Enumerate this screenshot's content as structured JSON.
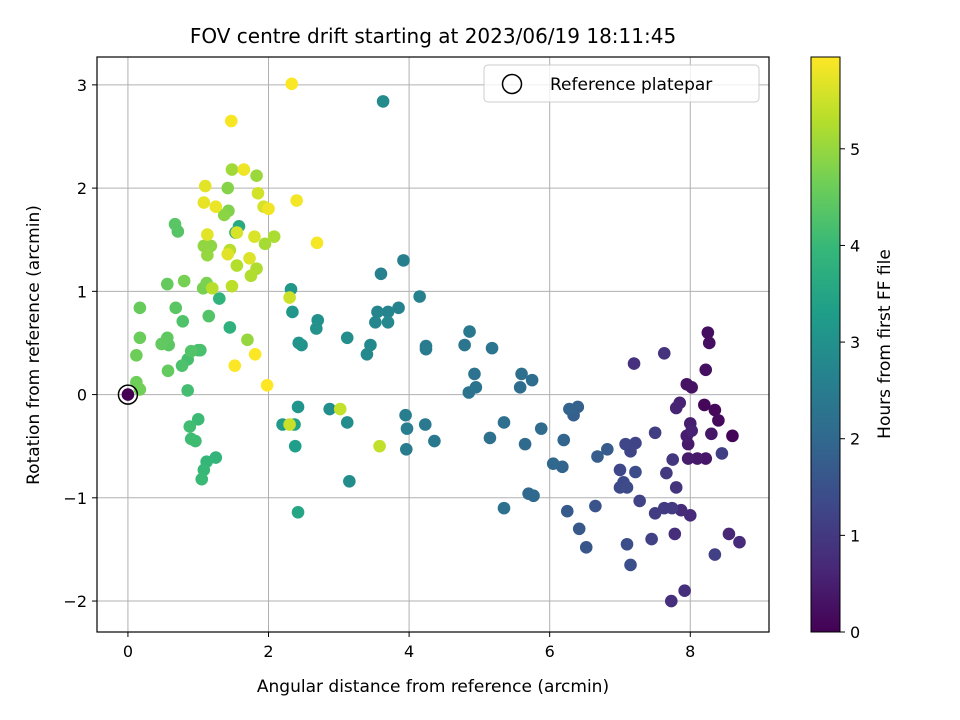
{
  "chart_data": {
    "type": "scatter",
    "title": "FOV centre drift starting at 2023/06/19 18:11:45",
    "xlabel": "Angular distance from reference (arcmin)",
    "ylabel": "Rotation from reference (arcmin)",
    "xlim": [
      -0.44,
      9.12
    ],
    "ylim": [
      -2.3,
      3.27
    ],
    "xticks": [
      0,
      2,
      4,
      6,
      8
    ],
    "yticks": [
      -2,
      -1,
      0,
      1,
      2,
      3
    ],
    "xtick_labels": [
      "0",
      "2",
      "4",
      "6",
      "8"
    ],
    "ytick_labels": [
      "−2",
      "−1",
      "0",
      "1",
      "2",
      "3"
    ],
    "grid": true,
    "legend": {
      "placement": "top-right",
      "entries": [
        "Reference platepar"
      ]
    },
    "reference_point": {
      "x": 0,
      "y": 0,
      "label": "Reference platepar"
    },
    "colorbar": {
      "label": "Hours from first FF file",
      "range": [
        0,
        5.95
      ],
      "ticks": [
        0,
        1,
        2,
        3,
        4,
        5
      ],
      "tick_labels": [
        "0",
        "1",
        "2",
        "3",
        "4",
        "5"
      ],
      "colormap": "viridis",
      "stops": [
        "#440154",
        "#482878",
        "#3e4989",
        "#31688e",
        "#26828e",
        "#1f9e89",
        "#35b779",
        "#6ece58",
        "#b5de2b",
        "#fde725"
      ]
    },
    "points": [
      [
        0.0,
        0.0,
        0.0
      ],
      [
        8.6,
        -0.4,
        0.05
      ],
      [
        8.2,
        -0.1,
        0.1
      ],
      [
        8.35,
        -0.15,
        0.12
      ],
      [
        8.4,
        -0.25,
        0.15
      ],
      [
        8.25,
        0.6,
        0.2
      ],
      [
        8.27,
        0.5,
        0.22
      ],
      [
        8.22,
        0.24,
        0.25
      ],
      [
        8.02,
        0.07,
        0.28
      ],
      [
        7.95,
        0.1,
        0.3
      ],
      [
        8.3,
        -0.38,
        0.35
      ],
      [
        8.22,
        -0.62,
        0.38
      ],
      [
        8.1,
        -0.62,
        0.4
      ],
      [
        7.97,
        -0.48,
        0.42
      ],
      [
        7.97,
        -0.62,
        0.45
      ],
      [
        8.0,
        -0.28,
        0.48
      ],
      [
        7.95,
        -0.4,
        0.5
      ],
      [
        8.02,
        -0.35,
        0.55
      ],
      [
        7.85,
        -0.08,
        0.58
      ],
      [
        7.8,
        -0.13,
        0.6
      ],
      [
        8.55,
        -1.35,
        0.65
      ],
      [
        8.7,
        -1.43,
        0.7
      ],
      [
        8.0,
        -1.17,
        0.72
      ],
      [
        7.87,
        -1.12,
        0.75
      ],
      [
        7.78,
        -1.35,
        0.78
      ],
      [
        7.73,
        -2.0,
        0.8
      ],
      [
        7.92,
        -1.9,
        0.82
      ],
      [
        7.2,
        0.3,
        0.85
      ],
      [
        7.63,
        0.4,
        0.88
      ],
      [
        7.8,
        -0.9,
        0.9
      ],
      [
        7.75,
        -0.63,
        0.95
      ],
      [
        7.66,
        -0.76,
        1.0
      ],
      [
        7.74,
        -1.1,
        1.02
      ],
      [
        7.63,
        -1.1,
        1.05
      ],
      [
        7.5,
        -1.15,
        1.08
      ],
      [
        7.5,
        -0.37,
        1.1
      ],
      [
        8.45,
        -0.57,
        1.12
      ],
      [
        8.35,
        -1.55,
        1.15
      ],
      [
        7.45,
        -1.4,
        1.18
      ],
      [
        7.28,
        -1.03,
        1.2
      ],
      [
        7.22,
        -0.47,
        1.22
      ],
      [
        7.15,
        -0.55,
        1.25
      ],
      [
        7.08,
        -0.48,
        1.28
      ],
      [
        7.0,
        -0.73,
        1.3
      ],
      [
        7.0,
        -0.9,
        1.32
      ],
      [
        7.05,
        -0.85,
        1.35
      ],
      [
        7.1,
        -0.9,
        1.38
      ],
      [
        7.22,
        -0.75,
        1.4
      ],
      [
        7.1,
        -1.45,
        1.42
      ],
      [
        7.15,
        -1.65,
        1.45
      ],
      [
        6.65,
        -1.08,
        1.55
      ],
      [
        6.52,
        -1.48,
        1.6
      ],
      [
        6.42,
        -1.3,
        1.65
      ],
      [
        6.25,
        -1.13,
        1.68
      ],
      [
        6.82,
        -0.53,
        1.7
      ],
      [
        6.68,
        -0.6,
        1.75
      ],
      [
        6.34,
        -0.2,
        1.8
      ],
      [
        6.4,
        -0.12,
        1.85
      ],
      [
        6.28,
        -0.14,
        1.9
      ],
      [
        6.18,
        -0.7,
        1.92
      ],
      [
        6.2,
        -0.44,
        1.95
      ],
      [
        6.05,
        -0.67,
        1.98
      ],
      [
        5.7,
        -0.96,
        2.0
      ],
      [
        5.77,
        -0.98,
        2.02
      ],
      [
        5.65,
        -0.48,
        2.05
      ],
      [
        5.88,
        -0.33,
        2.08
      ],
      [
        5.75,
        0.14,
        2.1
      ],
      [
        5.58,
        0.07,
        2.12
      ],
      [
        5.6,
        0.2,
        2.15
      ],
      [
        5.35,
        -0.27,
        2.18
      ],
      [
        5.15,
        -0.42,
        2.2
      ],
      [
        5.35,
        -1.1,
        2.22
      ],
      [
        4.93,
        0.2,
        2.25
      ],
      [
        4.95,
        0.07,
        2.28
      ],
      [
        4.85,
        0.02,
        2.3
      ],
      [
        5.18,
        0.45,
        2.32
      ],
      [
        4.79,
        0.48,
        2.35
      ],
      [
        4.86,
        0.61,
        2.38
      ],
      [
        4.36,
        -0.45,
        2.4
      ],
      [
        4.23,
        -0.29,
        2.42
      ],
      [
        4.24,
        0.44,
        2.45
      ],
      [
        4.24,
        0.47,
        2.48
      ],
      [
        3.96,
        -0.53,
        2.5
      ],
      [
        3.97,
        -0.33,
        2.52
      ],
      [
        3.95,
        -0.2,
        2.55
      ],
      [
        3.92,
        1.3,
        2.58
      ],
      [
        3.6,
        1.17,
        2.6
      ],
      [
        4.15,
        0.95,
        2.62
      ],
      [
        3.85,
        0.84,
        2.65
      ],
      [
        3.7,
        0.8,
        2.7
      ],
      [
        3.55,
        0.8,
        2.72
      ],
      [
        3.52,
        0.7,
        2.75
      ],
      [
        3.7,
        0.7,
        2.78
      ],
      [
        3.45,
        0.48,
        2.8
      ],
      [
        3.4,
        0.39,
        2.82
      ],
      [
        3.63,
        2.84,
        2.85
      ],
      [
        3.12,
        -0.27,
        2.88
      ],
      [
        3.15,
        -0.84,
        2.9
      ],
      [
        3.12,
        0.55,
        2.92
      ],
      [
        2.87,
        -0.14,
        2.95
      ],
      [
        2.7,
        0.72,
        3.0
      ],
      [
        2.68,
        0.64,
        3.02
      ],
      [
        2.47,
        0.48,
        3.05
      ],
      [
        2.43,
        0.5,
        3.08
      ],
      [
        2.42,
        -0.12,
        3.1
      ],
      [
        2.34,
        0.8,
        3.12
      ],
      [
        2.32,
        1.02,
        3.15
      ],
      [
        2.2,
        -0.29,
        3.2
      ],
      [
        2.38,
        -0.5,
        3.3
      ],
      [
        2.37,
        -0.29,
        3.4
      ],
      [
        2.42,
        -1.14,
        3.5
      ],
      [
        1.58,
        1.63,
        3.6
      ],
      [
        1.53,
        1.57,
        3.7
      ],
      [
        1.45,
        0.65,
        3.8
      ],
      [
        1.3,
        0.93,
        3.85
      ],
      [
        1.25,
        -0.61,
        3.9
      ],
      [
        1.12,
        -0.65,
        3.95
      ],
      [
        1.08,
        -0.73,
        4.0
      ],
      [
        1.05,
        -0.82,
        4.02
      ],
      [
        1.0,
        -0.24,
        4.05
      ],
      [
        0.96,
        -0.45,
        4.08
      ],
      [
        0.9,
        -0.43,
        4.1
      ],
      [
        0.88,
        -0.31,
        4.12
      ],
      [
        0.85,
        0.04,
        4.15
      ],
      [
        0.85,
        0.34,
        4.18
      ],
      [
        1.03,
        0.43,
        4.2
      ],
      [
        1.0,
        0.43,
        4.22
      ],
      [
        0.77,
        0.28,
        4.25
      ],
      [
        0.78,
        0.71,
        4.28
      ],
      [
        0.9,
        0.42,
        4.3
      ],
      [
        1.15,
        0.76,
        4.32
      ],
      [
        0.71,
        1.58,
        4.35
      ],
      [
        0.67,
        1.65,
        4.38
      ],
      [
        0.68,
        0.84,
        4.4
      ],
      [
        0.58,
        0.48,
        4.42
      ],
      [
        0.56,
        0.55,
        4.45
      ],
      [
        0.48,
        0.49,
        4.48
      ],
      [
        0.57,
        0.23,
        4.5
      ],
      [
        0.56,
        1.07,
        4.52
      ],
      [
        0.17,
        0.84,
        4.55
      ],
      [
        0.17,
        0.55,
        4.58
      ],
      [
        0.12,
        0.38,
        4.6
      ],
      [
        0.12,
        0.12,
        4.62
      ],
      [
        0.17,
        0.05,
        4.65
      ],
      [
        0.8,
        1.1,
        4.7
      ],
      [
        1.07,
        1.03,
        4.72
      ],
      [
        1.12,
        1.08,
        4.75
      ],
      [
        1.43,
        1.78,
        4.8
      ],
      [
        1.42,
        2.0,
        4.85
      ],
      [
        1.37,
        1.74,
        4.9
      ],
      [
        1.18,
        1.44,
        4.92
      ],
      [
        1.08,
        1.44,
        4.95
      ],
      [
        1.13,
        1.35,
        4.98
      ],
      [
        1.7,
        0.53,
        5.0
      ],
      [
        1.83,
        2.12,
        5.05
      ],
      [
        1.48,
        2.18,
        5.1
      ],
      [
        1.95,
        1.46,
        5.15
      ],
      [
        2.08,
        1.53,
        5.2
      ],
      [
        1.83,
        1.22,
        5.22
      ],
      [
        1.75,
        1.15,
        5.25
      ],
      [
        1.55,
        1.25,
        5.28
      ],
      [
        1.2,
        1.03,
        5.3
      ],
      [
        1.45,
        1.4,
        5.32
      ],
      [
        1.48,
        1.05,
        5.35
      ],
      [
        3.58,
        -0.5,
        5.4
      ],
      [
        3.02,
        -0.14,
        5.42
      ],
      [
        2.3,
        -0.29,
        5.45
      ],
      [
        2.3,
        0.94,
        5.5
      ],
      [
        1.85,
        1.95,
        5.55
      ],
      [
        1.93,
        1.82,
        5.58
      ],
      [
        1.55,
        1.57,
        5.6
      ],
      [
        1.8,
        1.53,
        5.62
      ],
      [
        1.73,
        1.32,
        5.65
      ],
      [
        1.42,
        1.36,
        5.68
      ],
      [
        1.13,
        1.55,
        5.7
      ],
      [
        1.1,
        2.02,
        5.72
      ],
      [
        1.08,
        1.86,
        5.75
      ],
      [
        1.25,
        1.82,
        5.78
      ],
      [
        1.65,
        2.18,
        5.8
      ],
      [
        2.0,
        1.8,
        5.82
      ],
      [
        2.4,
        1.88,
        5.85
      ],
      [
        2.69,
        1.47,
        5.88
      ],
      [
        1.47,
        2.65,
        5.9
      ],
      [
        2.33,
        3.01,
        5.92
      ],
      [
        1.52,
        0.28,
        5.93
      ],
      [
        1.81,
        0.39,
        5.94
      ],
      [
        1.98,
        0.09,
        5.95
      ]
    ]
  }
}
